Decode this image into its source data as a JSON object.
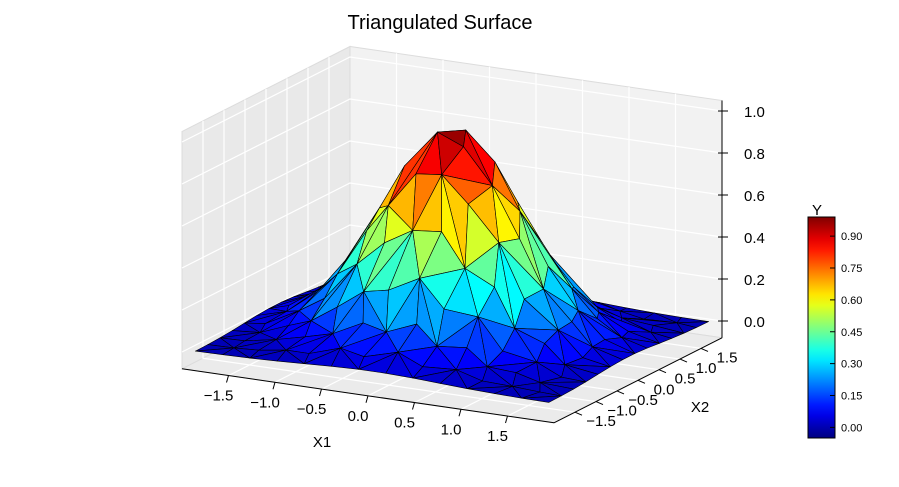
{
  "chart_data": {
    "type": "surface",
    "title": "Triangulated Surface",
    "xlabel": "X1",
    "ylabel": "X2",
    "zlabel": "",
    "x_ticks": [
      "−1.5",
      "−1.0",
      "−0.5",
      "0.0",
      "0.5",
      "1.0",
      "1.5"
    ],
    "y_ticks": [
      "−1.5",
      "−1.0",
      "−0.5",
      "0.0",
      "0.5",
      "1.0",
      "1.5"
    ],
    "z_ticks": [
      "0.0",
      "0.2",
      "0.4",
      "0.6",
      "0.8",
      "1.0"
    ],
    "xlim": [
      -2,
      2
    ],
    "ylim": [
      -2,
      2
    ],
    "zlim": [
      0,
      1
    ],
    "surface_function": "exp(-(x1^2 + x2^2))",
    "colormap": "jet",
    "colorbar": {
      "label": "Y",
      "ticks": [
        "0.00",
        "0.15",
        "0.30",
        "0.45",
        "0.60",
        "0.75",
        "0.90"
      ],
      "range": [
        -0.05,
        0.99
      ]
    },
    "grid": true
  }
}
